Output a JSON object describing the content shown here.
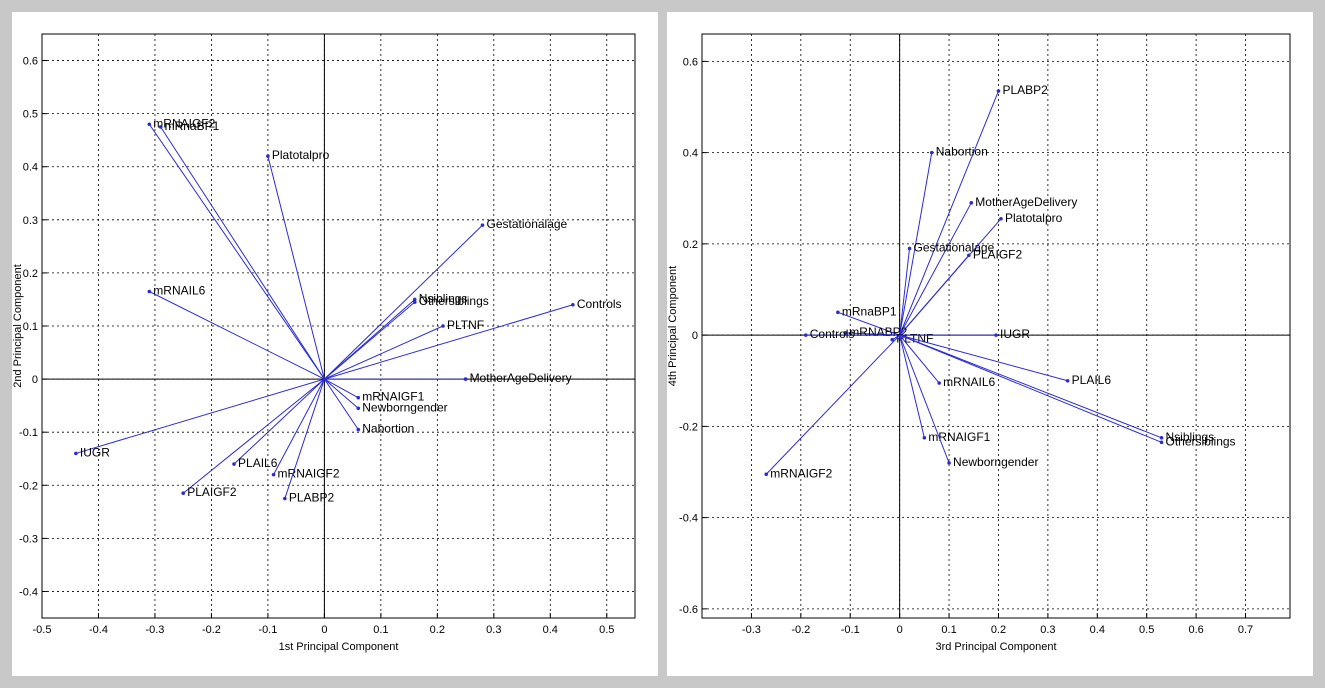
{
  "chart_data": [
    {
      "type": "scatter",
      "title": "",
      "xlabel": "1st Principal Component",
      "ylabel": "2nd Principal Component",
      "xlim": [
        -0.5,
        0.55
      ],
      "ylim": [
        -0.45,
        0.65
      ],
      "xticks": [
        "-0.5",
        "-0.4",
        "-0.3",
        "-0.2",
        "-0.1",
        "0",
        "0.1",
        "0.2",
        "0.3",
        "0.4",
        "0.5"
      ],
      "yticks": [
        "-0.4",
        "-0.3",
        "-0.2",
        "-0.1",
        "0",
        "0.1",
        "0.2",
        "0.3",
        "0.4",
        "0.5",
        "0.6"
      ],
      "grid": true,
      "points": [
        {
          "label": "mRNAIGF2",
          "x": -0.31,
          "y": 0.48
        },
        {
          "label": "mRnaBP1",
          "x": -0.29,
          "y": 0.475
        },
        {
          "label": "Platotalpro",
          "x": -0.1,
          "y": 0.42
        },
        {
          "label": "Gestationalage",
          "x": 0.28,
          "y": 0.29
        },
        {
          "label": "mRNAIL6",
          "x": -0.31,
          "y": 0.165
        },
        {
          "label": "Nsiblings",
          "x": 0.16,
          "y": 0.15
        },
        {
          "label": "Othersiblings",
          "x": 0.16,
          "y": 0.145
        },
        {
          "label": "Controls",
          "x": 0.44,
          "y": 0.14
        },
        {
          "label": "PLTNF",
          "x": 0.21,
          "y": 0.1
        },
        {
          "label": "MotherAgeDelivery",
          "x": 0.25,
          "y": 0.0
        },
        {
          "label": "mRNAIGF1",
          "x": 0.06,
          "y": -0.035
        },
        {
          "label": "Newborngender",
          "x": 0.06,
          "y": -0.055
        },
        {
          "label": "Nabortion",
          "x": 0.06,
          "y": -0.095
        },
        {
          "label": "IUGR",
          "x": -0.44,
          "y": -0.14
        },
        {
          "label": "PLAIL6",
          "x": -0.16,
          "y": -0.16
        },
        {
          "label": "mRNAIGF2",
          "x": -0.09,
          "y": -0.18
        },
        {
          "label": "PLAIGF2",
          "x": -0.25,
          "y": -0.215
        },
        {
          "label": "PLABP2",
          "x": -0.07,
          "y": -0.225
        }
      ]
    },
    {
      "type": "scatter",
      "title": "",
      "xlabel": "3rd Principal Component",
      "ylabel": "4th Principal Component",
      "xlim": [
        -0.4,
        0.79
      ],
      "ylim": [
        -0.62,
        0.66
      ],
      "xticks": [
        "-0.3",
        "-0.2",
        "-0.1",
        "0",
        "0.1",
        "0.2",
        "0.3",
        "0.4",
        "0.5",
        "0.6",
        "0.7"
      ],
      "yticks": [
        "-0.6",
        "-0.4",
        "-0.2",
        "0",
        "0.2",
        "0.4",
        "0.6"
      ],
      "grid": true,
      "points": [
        {
          "label": "PLABP2",
          "x": 0.2,
          "y": 0.535
        },
        {
          "label": "Nabortion",
          "x": 0.065,
          "y": 0.4
        },
        {
          "label": "MotherAgeDelivery",
          "x": 0.145,
          "y": 0.29
        },
        {
          "label": "Platotalpro",
          "x": 0.205,
          "y": 0.255
        },
        {
          "label": "Gestationalage",
          "x": 0.02,
          "y": 0.19
        },
        {
          "label": "PLAIGF2",
          "x": 0.14,
          "y": 0.175
        },
        {
          "label": "mRnaBP1",
          "x": -0.125,
          "y": 0.05
        },
        {
          "label": "mRNABP2",
          "x": -0.11,
          "y": 0.005
        },
        {
          "label": "Controls",
          "x": -0.19,
          "y": 0.0
        },
        {
          "label": "PLTNF",
          "x": -0.015,
          "y": -0.01
        },
        {
          "label": "IUGR",
          "x": 0.195,
          "y": 0.0
        },
        {
          "label": "mRNAIL6",
          "x": 0.08,
          "y": -0.105
        },
        {
          "label": "PLAIL6",
          "x": 0.34,
          "y": -0.1
        },
        {
          "label": "mRNAIGF1",
          "x": 0.05,
          "y": -0.225
        },
        {
          "label": "Newborngender",
          "x": 0.1,
          "y": -0.28
        },
        {
          "label": "Nsiblings",
          "x": 0.53,
          "y": -0.225
        },
        {
          "label": "Othersiblings",
          "x": 0.53,
          "y": -0.235
        },
        {
          "label": "mRNAIGF2",
          "x": -0.27,
          "y": -0.305
        }
      ]
    }
  ],
  "colors": {
    "vector": "#2b2bd6",
    "axis": "#000000",
    "grid": "#000000",
    "background": "#c8c8c8"
  }
}
